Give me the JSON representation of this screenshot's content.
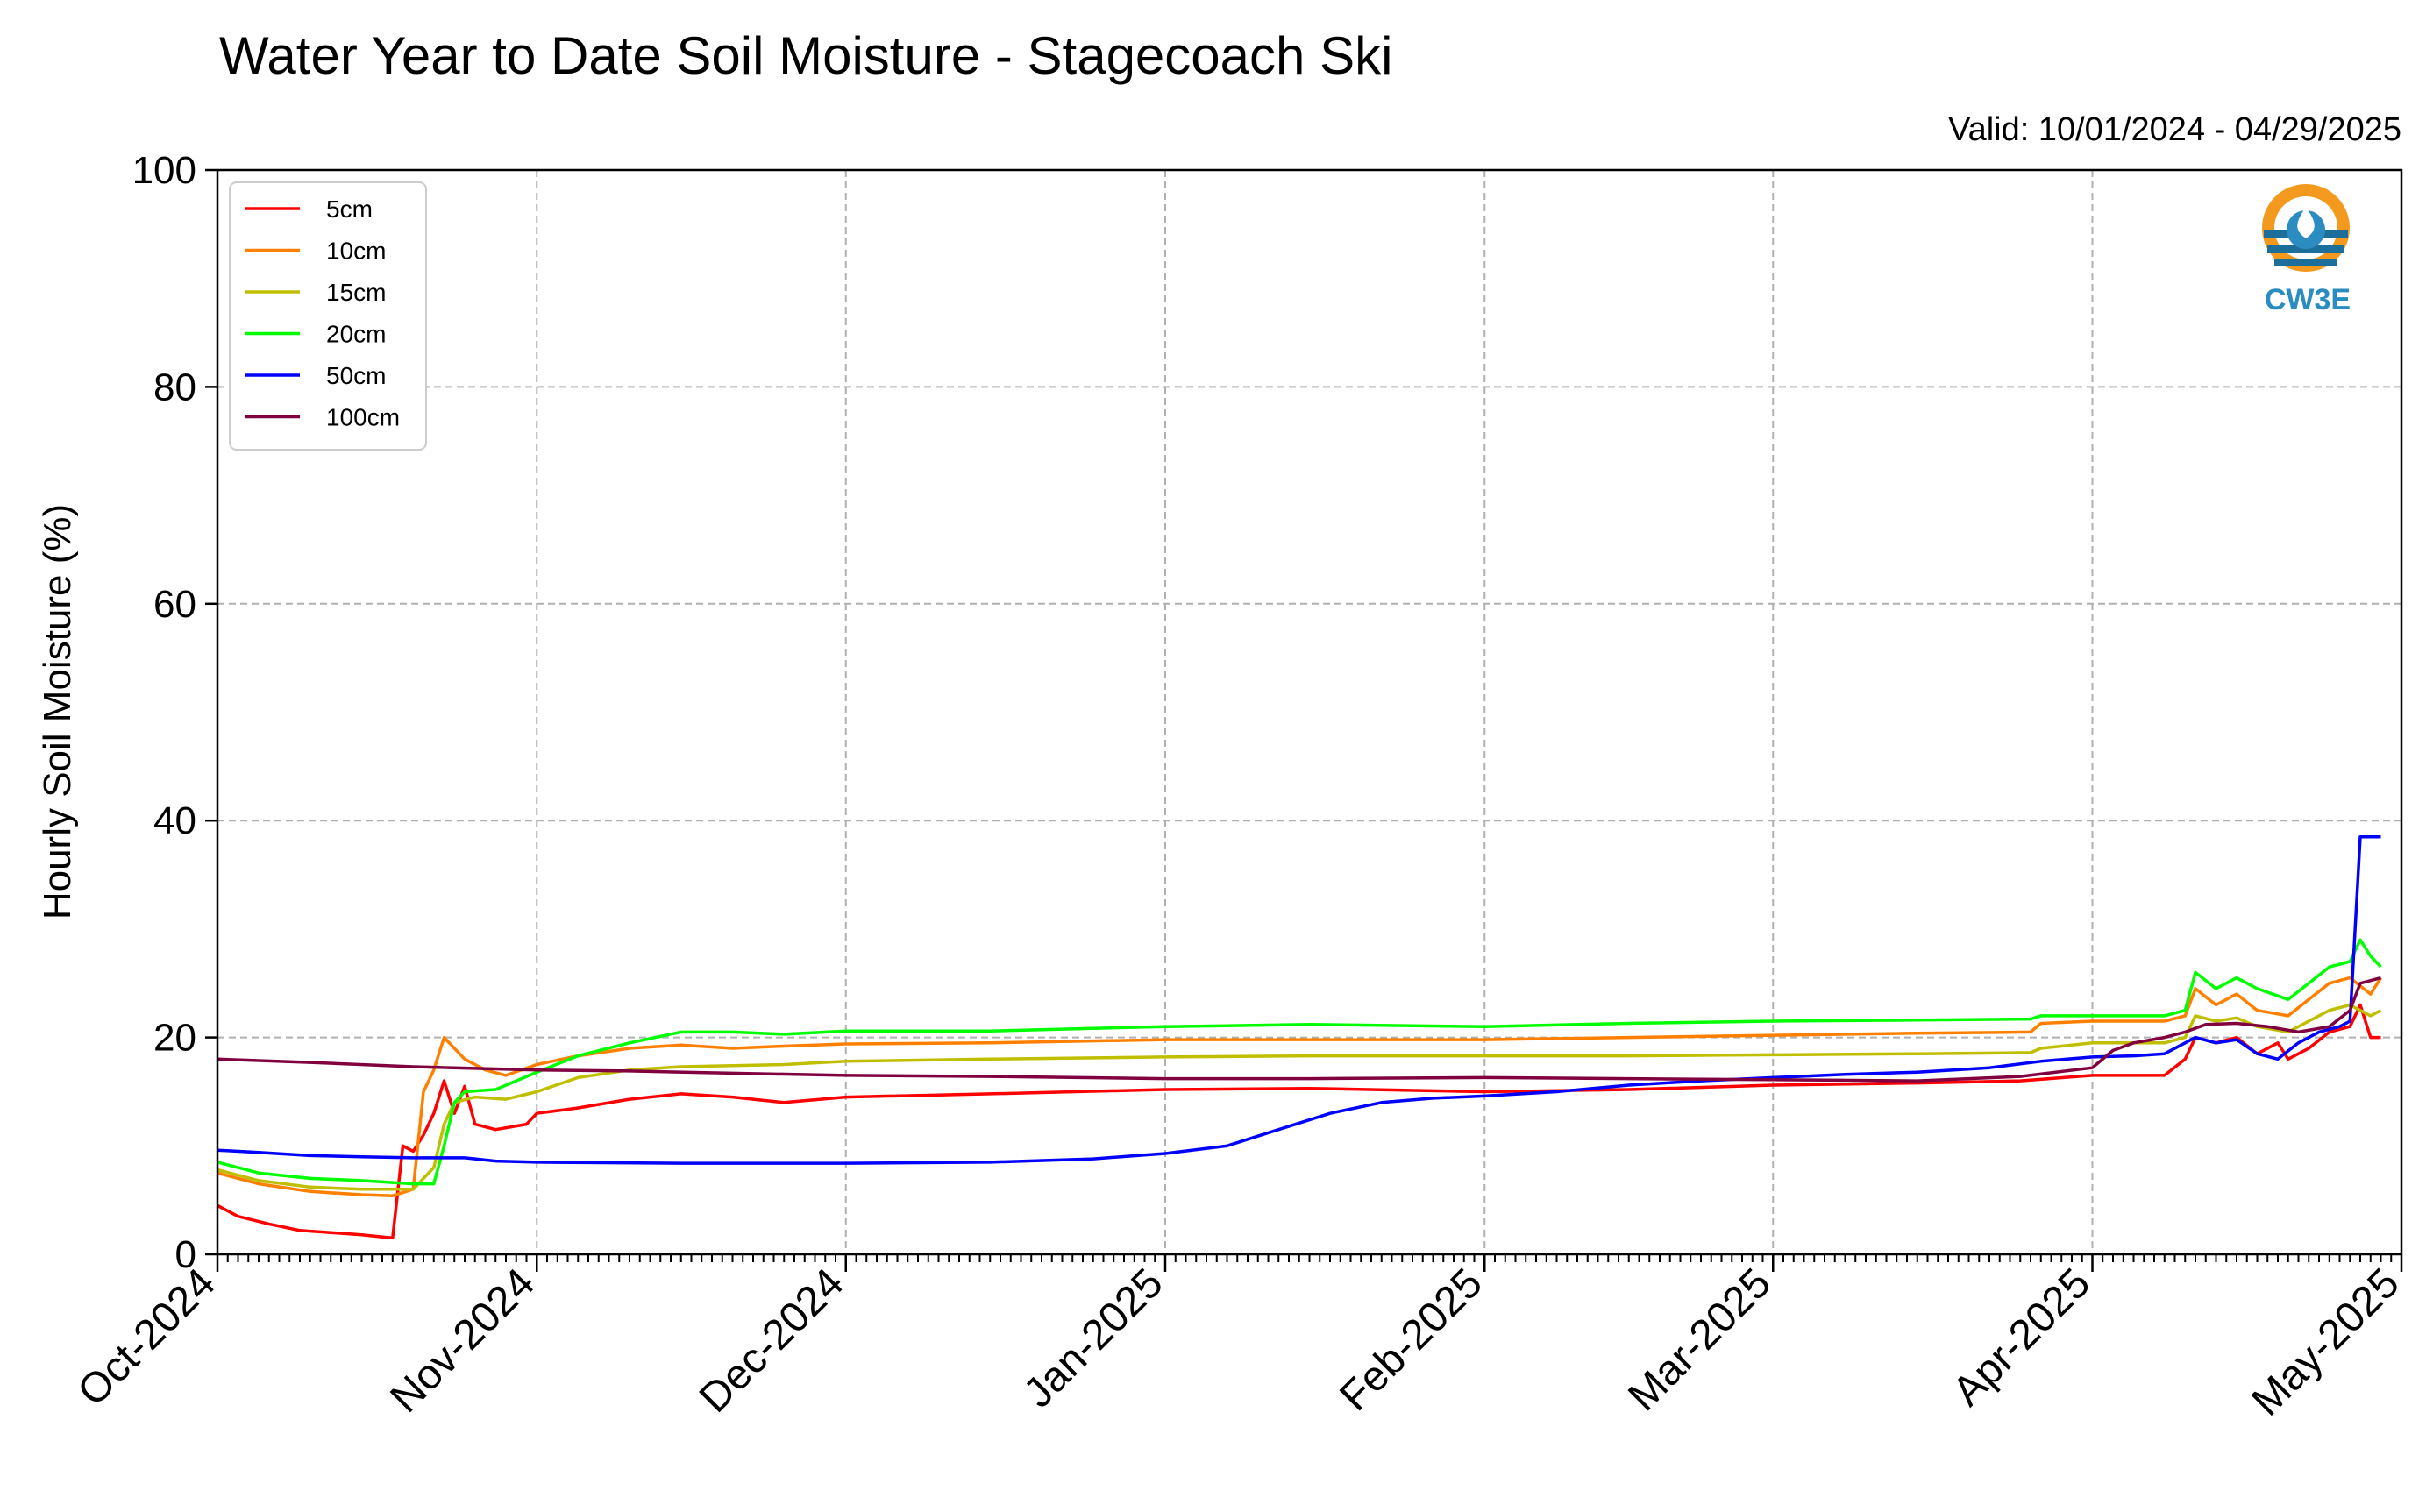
{
  "chart_data": {
    "type": "line",
    "title": "Water Year to Date Soil Moisture - Stagecoach Ski",
    "subtitle": "Valid: 10/01/2024 - 04/29/2025",
    "xlabel": "",
    "ylabel": "Hourly Soil Moisture (%)",
    "ylim": [
      0,
      100
    ],
    "xlim": [
      "2024-10-01",
      "2025-05-01"
    ],
    "yticks": [
      "0",
      "20",
      "40",
      "60",
      "80",
      "100"
    ],
    "xticks": [
      "Oct-2024",
      "Nov-2024",
      "Dec-2024",
      "Jan-2025",
      "Feb-2025",
      "Mar-2025",
      "Apr-2025",
      "May-2025"
    ],
    "grid": true,
    "legend_position": "top-left",
    "logo_text": "CW3E",
    "series": [
      {
        "name": "5cm",
        "color": "#ff0000",
        "points": [
          [
            "2024-10-01",
            4.5
          ],
          [
            "2024-10-03",
            3.5
          ],
          [
            "2024-10-06",
            2.8
          ],
          [
            "2024-10-09",
            2.2
          ],
          [
            "2024-10-12",
            2.0
          ],
          [
            "2024-10-15",
            1.8
          ],
          [
            "2024-10-18",
            1.5
          ],
          [
            "2024-10-19",
            10.0
          ],
          [
            "2024-10-20",
            9.5
          ],
          [
            "2024-10-21",
            11.0
          ],
          [
            "2024-10-22",
            13.0
          ],
          [
            "2024-10-23",
            16.0
          ],
          [
            "2024-10-24",
            13.0
          ],
          [
            "2024-10-25",
            15.5
          ],
          [
            "2024-10-26",
            12.0
          ],
          [
            "2024-10-28",
            11.5
          ],
          [
            "2024-10-31",
            12.0
          ],
          [
            "2024-11-01",
            13.0
          ],
          [
            "2024-11-05",
            13.5
          ],
          [
            "2024-11-10",
            14.3
          ],
          [
            "2024-11-15",
            14.8
          ],
          [
            "2024-11-20",
            14.5
          ],
          [
            "2024-11-25",
            14.0
          ],
          [
            "2024-12-01",
            14.5
          ],
          [
            "2024-12-15",
            14.8
          ],
          [
            "2025-01-01",
            15.2
          ],
          [
            "2025-01-15",
            15.3
          ],
          [
            "2025-02-01",
            15.0
          ],
          [
            "2025-02-15",
            15.2
          ],
          [
            "2025-03-01",
            15.6
          ],
          [
            "2025-03-15",
            15.8
          ],
          [
            "2025-03-25",
            16.0
          ],
          [
            "2025-04-01",
            16.5
          ],
          [
            "2025-04-08",
            16.5
          ],
          [
            "2025-04-10",
            18.0
          ],
          [
            "2025-04-11",
            20.0
          ],
          [
            "2025-04-13",
            19.5
          ],
          [
            "2025-04-15",
            20.0
          ],
          [
            "2025-04-17",
            18.5
          ],
          [
            "2025-04-19",
            19.5
          ],
          [
            "2025-04-20",
            18.0
          ],
          [
            "2025-04-22",
            19.0
          ],
          [
            "2025-04-24",
            20.5
          ],
          [
            "2025-04-26",
            21.0
          ],
          [
            "2025-04-27",
            23.0
          ],
          [
            "2025-04-28",
            20.0
          ],
          [
            "2025-04-29",
            20.0
          ]
        ]
      },
      {
        "name": "10cm",
        "color": "#ff8000",
        "points": [
          [
            "2024-10-01",
            7.5
          ],
          [
            "2024-10-05",
            6.5
          ],
          [
            "2024-10-10",
            5.8
          ],
          [
            "2024-10-15",
            5.5
          ],
          [
            "2024-10-18",
            5.4
          ],
          [
            "2024-10-20",
            6.0
          ],
          [
            "2024-10-21",
            15.0
          ],
          [
            "2024-10-22",
            17.0
          ],
          [
            "2024-10-23",
            20.0
          ],
          [
            "2024-10-25",
            18.0
          ],
          [
            "2024-10-27",
            17.0
          ],
          [
            "2024-10-29",
            16.5
          ],
          [
            "2024-11-01",
            17.5
          ],
          [
            "2024-11-05",
            18.3
          ],
          [
            "2024-11-10",
            19.0
          ],
          [
            "2024-11-15",
            19.3
          ],
          [
            "2024-11-20",
            19.0
          ],
          [
            "2024-11-25",
            19.2
          ],
          [
            "2024-12-01",
            19.4
          ],
          [
            "2024-12-15",
            19.5
          ],
          [
            "2025-01-01",
            19.8
          ],
          [
            "2025-01-15",
            19.8
          ],
          [
            "2025-02-01",
            19.8
          ],
          [
            "2025-02-15",
            20.0
          ],
          [
            "2025-03-01",
            20.2
          ],
          [
            "2025-03-15",
            20.4
          ],
          [
            "2025-03-26",
            20.5
          ],
          [
            "2025-03-27",
            21.3
          ],
          [
            "2025-04-01",
            21.5
          ],
          [
            "2025-04-08",
            21.5
          ],
          [
            "2025-04-10",
            22.0
          ],
          [
            "2025-04-11",
            24.5
          ],
          [
            "2025-04-13",
            23.0
          ],
          [
            "2025-04-15",
            24.0
          ],
          [
            "2025-04-17",
            22.5
          ],
          [
            "2025-04-20",
            22.0
          ],
          [
            "2025-04-22",
            23.5
          ],
          [
            "2025-04-24",
            25.0
          ],
          [
            "2025-04-26",
            25.5
          ],
          [
            "2025-04-28",
            24.0
          ],
          [
            "2025-04-29",
            25.5
          ]
        ]
      },
      {
        "name": "15cm",
        "color": "#bfbf00",
        "points": [
          [
            "2024-10-01",
            7.8
          ],
          [
            "2024-10-05",
            6.8
          ],
          [
            "2024-10-10",
            6.2
          ],
          [
            "2024-10-15",
            6.0
          ],
          [
            "2024-10-20",
            6.0
          ],
          [
            "2024-10-22",
            8.0
          ],
          [
            "2024-10-23",
            12.0
          ],
          [
            "2024-10-24",
            14.0
          ],
          [
            "2024-10-26",
            14.5
          ],
          [
            "2024-10-29",
            14.3
          ],
          [
            "2024-11-01",
            15.0
          ],
          [
            "2024-11-05",
            16.3
          ],
          [
            "2024-11-10",
            17.0
          ],
          [
            "2024-11-15",
            17.3
          ],
          [
            "2024-11-20",
            17.4
          ],
          [
            "2024-11-25",
            17.5
          ],
          [
            "2024-12-01",
            17.8
          ],
          [
            "2024-12-15",
            18.0
          ],
          [
            "2025-01-01",
            18.2
          ],
          [
            "2025-01-15",
            18.3
          ],
          [
            "2025-02-01",
            18.3
          ],
          [
            "2025-02-15",
            18.3
          ],
          [
            "2025-03-01",
            18.4
          ],
          [
            "2025-03-15",
            18.5
          ],
          [
            "2025-03-26",
            18.6
          ],
          [
            "2025-03-27",
            19.0
          ],
          [
            "2025-04-01",
            19.5
          ],
          [
            "2025-04-08",
            19.5
          ],
          [
            "2025-04-10",
            20.0
          ],
          [
            "2025-04-11",
            22.0
          ],
          [
            "2025-04-13",
            21.5
          ],
          [
            "2025-04-15",
            21.8
          ],
          [
            "2025-04-17",
            21.0
          ],
          [
            "2025-04-20",
            20.5
          ],
          [
            "2025-04-22",
            21.5
          ],
          [
            "2025-04-24",
            22.5
          ],
          [
            "2025-04-26",
            23.0
          ],
          [
            "2025-04-28",
            22.0
          ],
          [
            "2025-04-29",
            22.5
          ]
        ]
      },
      {
        "name": "20cm",
        "color": "#00ff00",
        "points": [
          [
            "2024-10-01",
            8.5
          ],
          [
            "2024-10-05",
            7.5
          ],
          [
            "2024-10-10",
            7.0
          ],
          [
            "2024-10-15",
            6.8
          ],
          [
            "2024-10-20",
            6.5
          ],
          [
            "2024-10-22",
            6.5
          ],
          [
            "2024-10-23",
            10.0
          ],
          [
            "2024-10-24",
            14.0
          ],
          [
            "2024-10-25",
            15.0
          ],
          [
            "2024-10-28",
            15.2
          ],
          [
            "2024-11-01",
            16.8
          ],
          [
            "2024-11-05",
            18.3
          ],
          [
            "2024-11-10",
            19.5
          ],
          [
            "2024-11-15",
            20.5
          ],
          [
            "2024-11-20",
            20.5
          ],
          [
            "2024-11-25",
            20.3
          ],
          [
            "2024-12-01",
            20.6
          ],
          [
            "2024-12-15",
            20.6
          ],
          [
            "2025-01-01",
            21.0
          ],
          [
            "2025-01-15",
            21.2
          ],
          [
            "2025-02-01",
            21.0
          ],
          [
            "2025-02-15",
            21.3
          ],
          [
            "2025-03-01",
            21.5
          ],
          [
            "2025-03-15",
            21.6
          ],
          [
            "2025-03-26",
            21.7
          ],
          [
            "2025-03-27",
            22.0
          ],
          [
            "2025-04-01",
            22.0
          ],
          [
            "2025-04-08",
            22.0
          ],
          [
            "2025-04-10",
            22.5
          ],
          [
            "2025-04-11",
            26.0
          ],
          [
            "2025-04-13",
            24.5
          ],
          [
            "2025-04-15",
            25.5
          ],
          [
            "2025-04-17",
            24.5
          ],
          [
            "2025-04-20",
            23.5
          ],
          [
            "2025-04-22",
            25.0
          ],
          [
            "2025-04-24",
            26.5
          ],
          [
            "2025-04-26",
            27.0
          ],
          [
            "2025-04-27",
            29.0
          ],
          [
            "2025-04-28",
            27.5
          ],
          [
            "2025-04-29",
            26.5
          ]
        ]
      },
      {
        "name": "50cm",
        "color": "#0000ff",
        "points": [
          [
            "2024-10-01",
            9.6
          ],
          [
            "2024-10-05",
            9.4
          ],
          [
            "2024-10-10",
            9.1
          ],
          [
            "2024-10-15",
            9.0
          ],
          [
            "2024-10-20",
            8.9
          ],
          [
            "2024-10-25",
            8.9
          ],
          [
            "2024-10-28",
            8.6
          ],
          [
            "2024-11-01",
            8.5
          ],
          [
            "2024-11-15",
            8.4
          ],
          [
            "2024-12-01",
            8.4
          ],
          [
            "2024-12-15",
            8.5
          ],
          [
            "2024-12-25",
            8.8
          ],
          [
            "2025-01-01",
            9.3
          ],
          [
            "2025-01-07",
            10.0
          ],
          [
            "2025-01-12",
            11.5
          ],
          [
            "2025-01-17",
            13.0
          ],
          [
            "2025-01-22",
            14.0
          ],
          [
            "2025-01-27",
            14.4
          ],
          [
            "2025-02-01",
            14.6
          ],
          [
            "2025-02-08",
            15.0
          ],
          [
            "2025-02-15",
            15.6
          ],
          [
            "2025-02-22",
            16.0
          ],
          [
            "2025-03-01",
            16.3
          ],
          [
            "2025-03-08",
            16.6
          ],
          [
            "2025-03-15",
            16.8
          ],
          [
            "2025-03-22",
            17.2
          ],
          [
            "2025-03-27",
            17.8
          ],
          [
            "2025-04-01",
            18.2
          ],
          [
            "2025-04-05",
            18.3
          ],
          [
            "2025-04-08",
            18.5
          ],
          [
            "2025-04-10",
            19.5
          ],
          [
            "2025-04-11",
            20.0
          ],
          [
            "2025-04-13",
            19.5
          ],
          [
            "2025-04-15",
            19.8
          ],
          [
            "2025-04-17",
            18.5
          ],
          [
            "2025-04-19",
            18.0
          ],
          [
            "2025-04-21",
            19.5
          ],
          [
            "2025-04-23",
            20.5
          ],
          [
            "2025-04-25",
            21.0
          ],
          [
            "2025-04-26",
            21.5
          ],
          [
            "2025-04-27",
            38.5
          ],
          [
            "2025-04-29",
            38.5
          ]
        ]
      },
      {
        "name": "100cm",
        "color": "#800040",
        "points": [
          [
            "2024-10-01",
            18.0
          ],
          [
            "2024-10-10",
            17.7
          ],
          [
            "2024-10-20",
            17.3
          ],
          [
            "2024-11-01",
            17.0
          ],
          [
            "2024-11-10",
            16.9
          ],
          [
            "2024-11-20",
            16.7
          ],
          [
            "2024-12-01",
            16.5
          ],
          [
            "2024-12-15",
            16.4
          ],
          [
            "2025-01-01",
            16.2
          ],
          [
            "2025-01-15",
            16.2
          ],
          [
            "2025-02-01",
            16.3
          ],
          [
            "2025-02-15",
            16.2
          ],
          [
            "2025-03-01",
            16.1
          ],
          [
            "2025-03-15",
            16.0
          ],
          [
            "2025-03-25",
            16.4
          ],
          [
            "2025-04-01",
            17.2
          ],
          [
            "2025-04-03",
            18.8
          ],
          [
            "2025-04-05",
            19.5
          ],
          [
            "2025-04-08",
            20.0
          ],
          [
            "2025-04-10",
            20.5
          ],
          [
            "2025-04-12",
            21.2
          ],
          [
            "2025-04-15",
            21.3
          ],
          [
            "2025-04-18",
            21.0
          ],
          [
            "2025-04-21",
            20.5
          ],
          [
            "2025-04-24",
            21.0
          ],
          [
            "2025-04-26",
            22.5
          ],
          [
            "2025-04-27",
            25.0
          ],
          [
            "2025-04-29",
            25.5
          ]
        ]
      }
    ]
  }
}
